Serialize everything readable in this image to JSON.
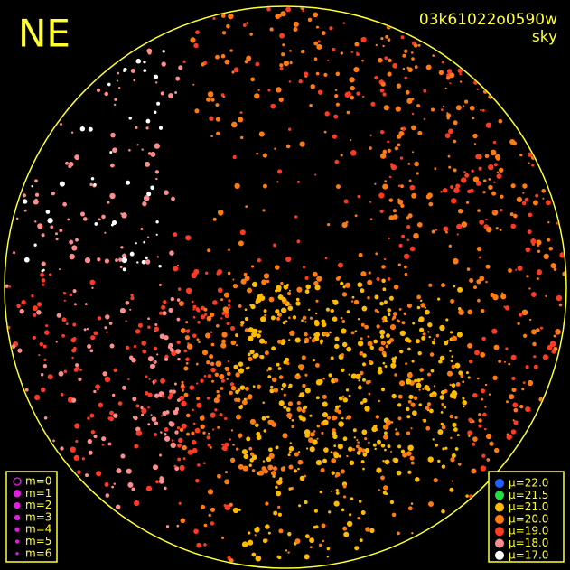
{
  "corner_label": "NE",
  "frame": {
    "id": "03k61022o0590w",
    "filter": "sky"
  },
  "magnitude_legend": {
    "color": "#e020e0",
    "items": [
      "m=0",
      "m=1",
      "m=2",
      "m=3",
      "m=4",
      "m=5",
      "m=6"
    ]
  },
  "brightness_legend": [
    {
      "label": "μ=22.0",
      "color": "#2060ff"
    },
    {
      "label": "μ=21.5",
      "color": "#22dd44"
    },
    {
      "label": "μ=21.0",
      "color": "#ffbb00"
    },
    {
      "label": "μ=20.0",
      "color": "#ff7a10"
    },
    {
      "label": "μ=19.0",
      "color": "#ff3a22"
    },
    {
      "label": "μ=18.0",
      "color": "#ff8c8c"
    },
    {
      "label": "μ=17.0",
      "color": "#ffffff"
    }
  ]
}
